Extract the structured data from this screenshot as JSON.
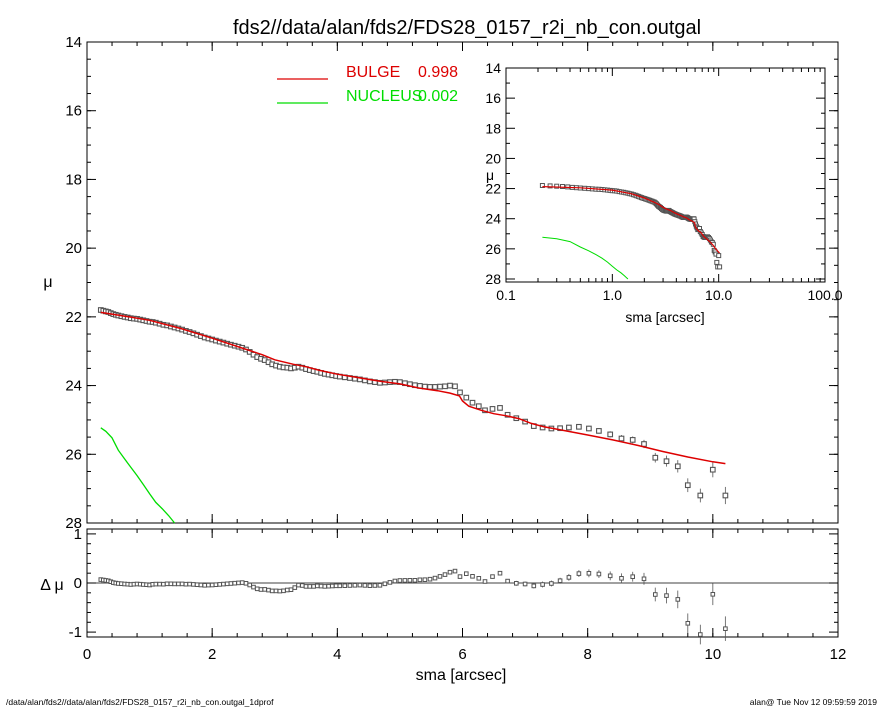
{
  "footer": {
    "left": "/data/alan/fds2//data/alan/fds2/FDS28_0157_r2i_nb_con.outgal_1dprof",
    "right": "alan@  Tue Nov 12 09:59:59 2019"
  },
  "colors": {
    "bulge": "#dd0000",
    "nucleus": "#00dd00",
    "data": "#555555",
    "axis": "#000000"
  },
  "chart_data": [
    {
      "id": "main",
      "type": "scatter",
      "title": "fds2//data/alan/fds2/FDS28_0157_r2i_nb_con.outgal",
      "xlabel": "sma [arcsec]",
      "ylabel": "μ",
      "xlim": [
        0,
        12
      ],
      "ylim": [
        28,
        14
      ],
      "x_ticks": [
        "0",
        "2",
        "4",
        "6",
        "8",
        "10",
        "12"
      ],
      "y_ticks": [
        "14",
        "16",
        "18",
        "20",
        "22",
        "24",
        "26",
        "28"
      ],
      "legend": [
        {
          "name": "BULGE",
          "value": "0.998",
          "color": "#dd0000"
        },
        {
          "name": "NUCLEUS",
          "value": "0.002",
          "color": "#00dd00"
        }
      ],
      "data_points": {
        "x": [
          0.22,
          0.26,
          0.3,
          0.34,
          0.38,
          0.42,
          0.46,
          0.5,
          0.55,
          0.6,
          0.65,
          0.7,
          0.75,
          0.8,
          0.85,
          0.9,
          0.95,
          1.0,
          1.05,
          1.1,
          1.16,
          1.22,
          1.28,
          1.34,
          1.4,
          1.46,
          1.52,
          1.58,
          1.64,
          1.7,
          1.76,
          1.82,
          1.88,
          1.94,
          2.0,
          2.06,
          2.12,
          2.18,
          2.24,
          2.3,
          2.36,
          2.42,
          2.48,
          2.54,
          2.6,
          2.66,
          2.72,
          2.78,
          2.84,
          2.9,
          2.96,
          3.02,
          3.08,
          3.14,
          3.2,
          3.26,
          3.32,
          3.38,
          3.44,
          3.5,
          3.56,
          3.62,
          3.68,
          3.74,
          3.8,
          3.86,
          3.92,
          3.98,
          4.04,
          4.12,
          4.2,
          4.28,
          4.36,
          4.44,
          4.52,
          4.6,
          4.68,
          4.76,
          4.84,
          4.92,
          5.0,
          5.08,
          5.16,
          5.24,
          5.32,
          5.4,
          5.48,
          5.56,
          5.64,
          5.72,
          5.8,
          5.88,
          5.96,
          6.06,
          6.16,
          6.26,
          6.36,
          6.48,
          6.6,
          6.72,
          6.86,
          7.0,
          7.14,
          7.28,
          7.42,
          7.56,
          7.7,
          7.86,
          8.02,
          8.18,
          8.36,
          8.54,
          8.72,
          8.9,
          9.08,
          9.26,
          9.44,
          9.6,
          9.8,
          10.0,
          10.2
        ],
        "y": [
          21.8,
          21.82,
          21.84,
          21.86,
          21.89,
          21.92,
          21.94,
          21.96,
          21.98,
          22.0,
          22.02,
          22.04,
          22.05,
          22.06,
          22.08,
          22.1,
          22.12,
          22.14,
          22.15,
          22.17,
          22.2,
          22.23,
          22.25,
          22.28,
          22.31,
          22.34,
          22.37,
          22.41,
          22.44,
          22.48,
          22.52,
          22.56,
          22.6,
          22.63,
          22.66,
          22.69,
          22.72,
          22.75,
          22.78,
          22.81,
          22.84,
          22.87,
          22.9,
          22.95,
          23.02,
          23.1,
          23.17,
          23.22,
          23.26,
          23.32,
          23.38,
          23.42,
          23.45,
          23.47,
          23.48,
          23.5,
          23.48,
          23.45,
          23.48,
          23.52,
          23.55,
          23.58,
          23.6,
          23.63,
          23.66,
          23.68,
          23.7,
          23.72,
          23.74,
          23.76,
          23.78,
          23.8,
          23.82,
          23.85,
          23.88,
          23.9,
          23.92,
          23.91,
          23.9,
          23.89,
          23.9,
          23.93,
          23.96,
          23.99,
          24.01,
          24.03,
          24.04,
          24.04,
          24.03,
          24.02,
          24.0,
          24.02,
          24.2,
          24.35,
          24.5,
          24.6,
          24.72,
          24.68,
          24.65,
          24.85,
          24.95,
          25.05,
          25.18,
          25.22,
          25.25,
          25.24,
          25.22,
          25.2,
          25.25,
          25.32,
          25.42,
          25.54,
          25.58,
          25.7,
          26.1,
          26.2,
          26.35,
          26.9,
          27.2,
          26.45,
          27.2
        ],
        "yerr": [
          0.01,
          0.01,
          0.01,
          0.01,
          0.01,
          0.01,
          0.01,
          0.01,
          0.01,
          0.01,
          0.01,
          0.01,
          0.01,
          0.01,
          0.01,
          0.01,
          0.01,
          0.01,
          0.01,
          0.01,
          0.01,
          0.01,
          0.01,
          0.01,
          0.01,
          0.01,
          0.01,
          0.01,
          0.01,
          0.01,
          0.01,
          0.01,
          0.01,
          0.01,
          0.01,
          0.01,
          0.01,
          0.01,
          0.01,
          0.01,
          0.01,
          0.01,
          0.01,
          0.01,
          0.01,
          0.01,
          0.01,
          0.01,
          0.01,
          0.01,
          0.01,
          0.01,
          0.01,
          0.01,
          0.01,
          0.01,
          0.01,
          0.01,
          0.01,
          0.01,
          0.01,
          0.01,
          0.01,
          0.01,
          0.01,
          0.01,
          0.01,
          0.01,
          0.01,
          0.02,
          0.02,
          0.02,
          0.02,
          0.02,
          0.02,
          0.02,
          0.02,
          0.02,
          0.02,
          0.02,
          0.02,
          0.02,
          0.02,
          0.02,
          0.02,
          0.02,
          0.02,
          0.02,
          0.02,
          0.02,
          0.02,
          0.03,
          0.03,
          0.03,
          0.03,
          0.03,
          0.04,
          0.04,
          0.04,
          0.04,
          0.05,
          0.05,
          0.05,
          0.06,
          0.06,
          0.06,
          0.07,
          0.07,
          0.08,
          0.08,
          0.09,
          0.1,
          0.1,
          0.12,
          0.14,
          0.16,
          0.18,
          0.2,
          0.2,
          0.22,
          0.25
        ]
      },
      "bulge_model": {
        "x": [
          0.22,
          0.5,
          1.0,
          1.5,
          2.0,
          2.5,
          2.8,
          3.0,
          3.3,
          3.5,
          3.7,
          4.0,
          4.3,
          4.5,
          4.7,
          5.0,
          5.3,
          5.6,
          5.8,
          5.95,
          6.0,
          6.1,
          6.3,
          6.5,
          6.7,
          6.9,
          7.1,
          7.3,
          7.6,
          8.0,
          8.4,
          8.8,
          9.2,
          9.6,
          10.0,
          10.2
        ],
        "y": [
          21.87,
          21.95,
          22.1,
          22.34,
          22.62,
          22.92,
          23.1,
          23.25,
          23.38,
          23.45,
          23.55,
          23.67,
          23.76,
          23.82,
          23.88,
          23.95,
          24.07,
          24.15,
          24.22,
          24.3,
          24.45,
          24.6,
          24.72,
          24.82,
          24.88,
          24.96,
          25.1,
          25.2,
          25.3,
          25.44,
          25.58,
          25.74,
          25.92,
          26.08,
          26.22,
          26.27
        ]
      },
      "nucleus_model": {
        "x": [
          0.22,
          0.3,
          0.4,
          0.5,
          0.6,
          0.7,
          0.8,
          0.9,
          1.0,
          1.1,
          1.2,
          1.3,
          1.4
        ],
        "y": [
          25.23,
          25.33,
          25.52,
          25.88,
          26.13,
          26.38,
          26.62,
          26.88,
          27.15,
          27.4,
          27.58,
          27.78,
          28.0
        ]
      }
    },
    {
      "id": "residual",
      "type": "scatter",
      "xlabel": "sma [arcsec]",
      "ylabel": "Δ μ",
      "xlim": [
        0,
        12
      ],
      "ylim": [
        -1.1,
        1.1
      ],
      "x_ticks": [
        "0",
        "2",
        "4",
        "6",
        "8",
        "10",
        "12"
      ],
      "y_ticks": [
        "-1",
        "0",
        "1"
      ]
    },
    {
      "id": "inset",
      "type": "scatter",
      "xlabel": "sma [arcsec]",
      "ylabel": "μ",
      "xscale": "log",
      "xlim": [
        0.1,
        100
      ],
      "ylim": [
        28.2,
        14
      ],
      "x_ticks": [
        "0.1",
        "1.0",
        "10.0",
        "100.0"
      ],
      "y_ticks": [
        "14",
        "16",
        "18",
        "20",
        "22",
        "24",
        "26",
        "28"
      ]
    }
  ]
}
